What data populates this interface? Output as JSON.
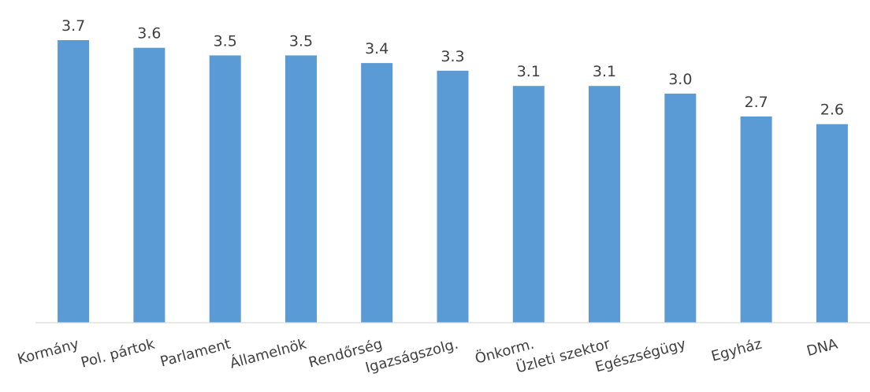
{
  "chart_data": {
    "type": "bar",
    "title": "",
    "xlabel": "",
    "ylabel": "",
    "categories": [
      "Kormány",
      "Pol. pártok",
      "Parlament",
      "Államelnök",
      "Rendőrség",
      "Igazságszolg.",
      "Önkorm.",
      "Üzleti szektor",
      "Egészségügy",
      "Egyház",
      "DNA"
    ],
    "values": [
      3.7,
      3.6,
      3.5,
      3.5,
      3.4,
      3.3,
      3.1,
      3.1,
      3.0,
      2.7,
      2.6
    ],
    "value_labels": [
      "3.7",
      "3.6",
      "3.5",
      "3.5",
      "3.4",
      "3.3",
      "3.1",
      "3.1",
      "3.0",
      "2.7",
      "2.6"
    ],
    "ylim": [
      0,
      3.7
    ],
    "grid": false,
    "legend": "none",
    "bar_color": "#5B9BD5",
    "axis_color": "#D9D9D9",
    "text_color": "#404040"
  }
}
